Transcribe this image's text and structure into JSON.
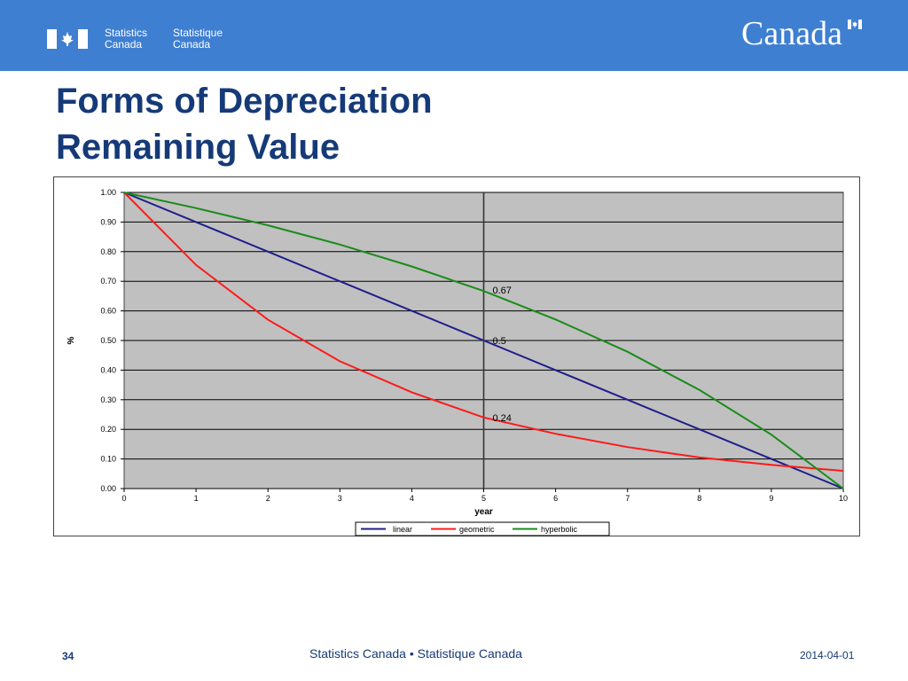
{
  "header": {
    "agency_en_line1": "Statistics",
    "agency_en_line2": "Canada",
    "agency_fr_line1": "Statistique",
    "agency_fr_line2": "Canada",
    "wordmark": "Canada",
    "banner_color": "#3f7fd2"
  },
  "slide": {
    "title_line1": "Forms of Depreciation",
    "title_line2": "Remaining Value"
  },
  "chart_data": {
    "type": "line",
    "xlabel": "year",
    "ylabel": "%",
    "x": [
      0,
      1,
      2,
      3,
      4,
      5,
      6,
      7,
      8,
      9,
      10
    ],
    "xlim": [
      0,
      10
    ],
    "ylim": [
      0,
      1
    ],
    "y_ticks": [
      "0.00",
      "0.10",
      "0.20",
      "0.30",
      "0.40",
      "0.50",
      "0.60",
      "0.70",
      "0.80",
      "0.90",
      "1.00"
    ],
    "x_ticks": [
      "0",
      "1",
      "2",
      "3",
      "4",
      "5",
      "6",
      "7",
      "8",
      "9",
      "10"
    ],
    "grid": true,
    "plot_background": "#c0c0c0",
    "reference_line_x": 5,
    "series": [
      {
        "name": "linear",
        "color": "#1f1f8c",
        "values": [
          1.0,
          0.9,
          0.8,
          0.7,
          0.6,
          0.5,
          0.4,
          0.3,
          0.2,
          0.1,
          0.0
        ]
      },
      {
        "name": "geometric",
        "color": "#ff1a1a",
        "values": [
          1.0,
          0.755,
          0.57,
          0.43,
          0.325,
          0.24,
          0.185,
          0.14,
          0.105,
          0.08,
          0.06
        ]
      },
      {
        "name": "hyperbolic",
        "color": "#1a8c1a",
        "values": [
          1.0,
          0.947,
          0.889,
          0.824,
          0.75,
          0.667,
          0.571,
          0.462,
          0.333,
          0.182,
          0.0
        ]
      }
    ],
    "annotations": [
      {
        "text": "0.67",
        "x": 5,
        "y": 0.67
      },
      {
        "text": "0.5",
        "x": 5,
        "y": 0.5
      },
      {
        "text": "0.24",
        "x": 5,
        "y": 0.24
      }
    ],
    "legend_position": "bottom"
  },
  "footer": {
    "center": "Statistics Canada • Statistique Canada",
    "page_number": "34",
    "date": "2014-04-01"
  }
}
